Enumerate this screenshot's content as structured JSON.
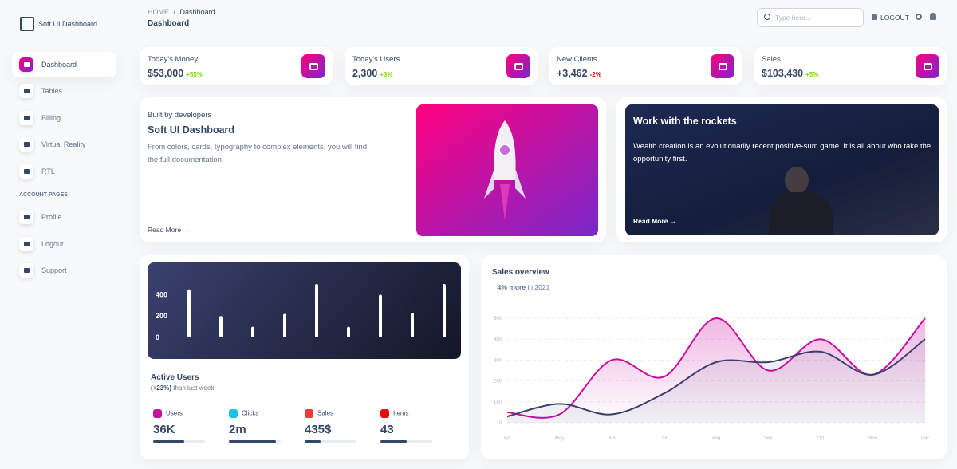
{
  "sidebar": {
    "brand": "Soft UI Dashboard",
    "items": [
      "Dashboard",
      "Tables",
      "Billing",
      "Virtual Reality",
      "RTL"
    ],
    "section": "ACCOUNT PAGES",
    "account_items": [
      "Profile",
      "Logout",
      "Support"
    ]
  },
  "header": {
    "breadcrumb": {
      "root": "HOME",
      "separator": "/",
      "current": "Dashboard"
    },
    "title": "Dashboard",
    "search_placeholder": "Type here...",
    "logout": "LOGOUT"
  },
  "stats": [
    {
      "label": "Today's Money",
      "value": "$53,000",
      "change": "+55%",
      "change_color": "#82d616"
    },
    {
      "label": "Today's Users",
      "value": "2,300",
      "change": "+3%",
      "change_color": "#82d616"
    },
    {
      "label": "New Clients",
      "value": "+3,462",
      "change": "-2%",
      "change_color": "#ea0606"
    },
    {
      "label": "Sales",
      "value": "$103,430",
      "change": "+5%",
      "change_color": "#82d616"
    }
  ],
  "developers_card": {
    "kicker": "Built by developers",
    "title": "Soft UI Dashboard",
    "text": "From colors, cards, typography to complex elements, you will find the full documentation.",
    "link": "Read More"
  },
  "rockets_card": {
    "title": "Work with the rockets",
    "text": "Wealth creation is an evolutionarily recent positive-sum game. It is all about who take the opportunity first.",
    "link": "Read More"
  },
  "active_users": {
    "chart": {
      "type": "bar",
      "values": [
        450,
        200,
        100,
        220,
        500,
        100,
        400,
        230,
        500
      ],
      "color": "#ffffff",
      "ylim": [
        0,
        500
      ],
      "yticks": [
        0,
        200,
        400
      ]
    },
    "title": "Active Users",
    "highlight": "(+23%)",
    "subtitle": "than last week",
    "metrics": [
      {
        "label": "Users",
        "value": "36K",
        "progress": 60,
        "color": "#cb0c9f"
      },
      {
        "label": "Clicks",
        "value": "2m",
        "progress": 90,
        "color": "#17c1e8"
      },
      {
        "label": "Sales",
        "value": "435$",
        "progress": 30,
        "color": "#f53939"
      },
      {
        "label": "Items",
        "value": "43",
        "progress": 50,
        "color": "#ea0606"
      }
    ]
  },
  "sales_overview": {
    "title": "Sales overview",
    "highlight": "4% more",
    "subtitle": "in 2021",
    "chart": {
      "type": "line",
      "categories": [
        "Apr",
        "May",
        "Jun",
        "Jul",
        "Aug",
        "Sep",
        "Oct",
        "Nov",
        "Dec"
      ],
      "series": [
        {
          "color": "#cb0c9f",
          "values": [
            50,
            40,
            300,
            220,
            500,
            250,
            400,
            230,
            500
          ]
        },
        {
          "color": "#3a416f",
          "values": [
            30,
            90,
            40,
            140,
            290,
            290,
            340,
            230,
            400
          ]
        }
      ],
      "ylim": [
        0,
        500
      ],
      "yticks": [
        0,
        100,
        200,
        300,
        400,
        500
      ],
      "grid": true
    }
  }
}
